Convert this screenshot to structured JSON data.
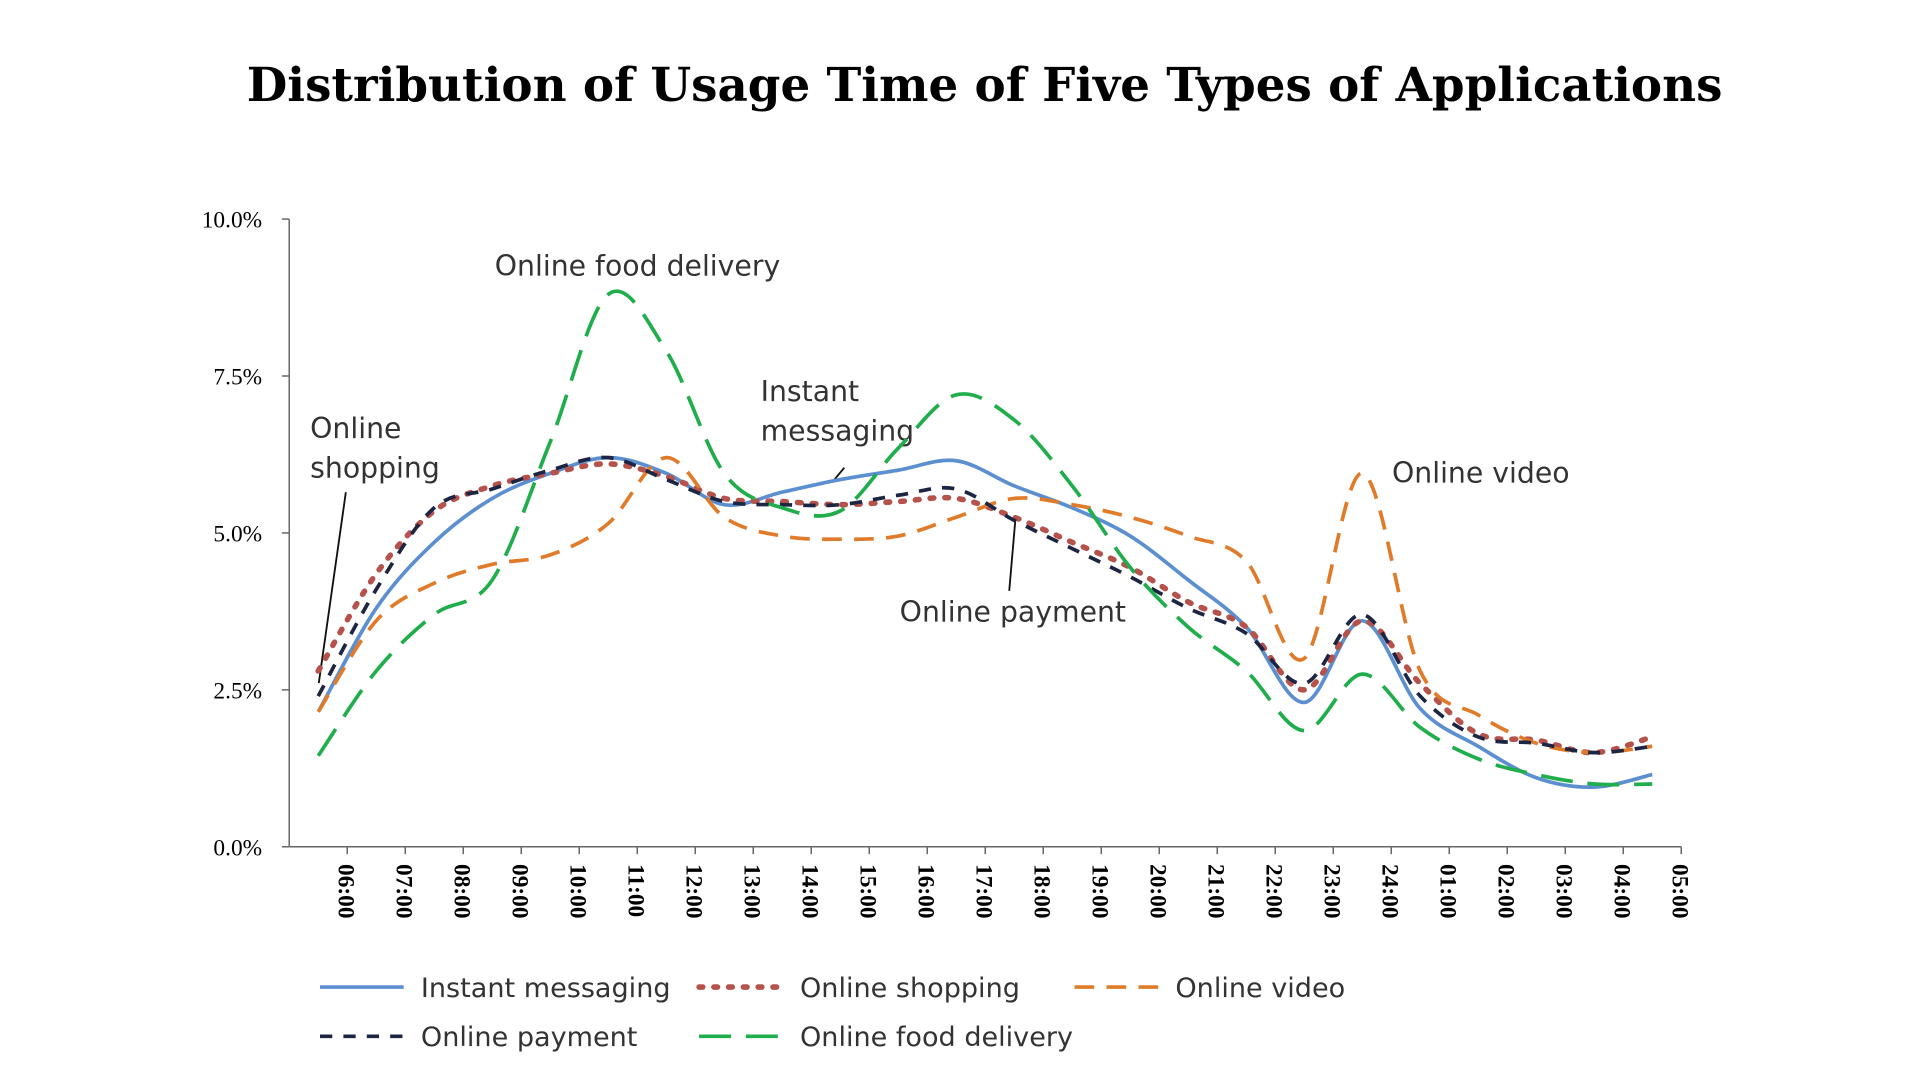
{
  "chart_data": {
    "type": "line",
    "title": "Distribution of Usage Time of Five Types of Applications",
    "categories": [
      "06:00",
      "07:00",
      "08:00",
      "09:00",
      "10:00",
      "11:00",
      "12:00",
      "13:00",
      "14:00",
      "15:00",
      "16:00",
      "17:00",
      "18:00",
      "19:00",
      "20:00",
      "21:00",
      "22:00",
      "23:00",
      "24:00",
      "01:00",
      "02:00",
      "03:00",
      "04:00",
      "05:00"
    ],
    "ylim": [
      0,
      10
    ],
    "yticks": [
      {
        "value": 0,
        "label": "0.0%"
      },
      {
        "value": 2.5,
        "label": "2.5%"
      },
      {
        "value": 5,
        "label": "5.0%"
      },
      {
        "value": 7.5,
        "label": "7.5%"
      },
      {
        "value": 10,
        "label": "10.0%"
      }
    ],
    "series": [
      {
        "name": "Instant messaging",
        "color": "#5b8fd0",
        "dash": "solid",
        "values": [
          2.15,
          3.8,
          4.85,
          5.55,
          5.95,
          6.2,
          5.95,
          5.45,
          5.65,
          5.85,
          6.0,
          6.15,
          5.75,
          5.4,
          4.95,
          4.25,
          3.5,
          2.3,
          3.6,
          2.2,
          1.6,
          1.1,
          0.95,
          1.15
        ]
      },
      {
        "name": "Online shopping",
        "color": "#b5524c",
        "dash": "dot",
        "values": [
          2.8,
          4.35,
          5.35,
          5.75,
          5.95,
          6.1,
          5.9,
          5.55,
          5.5,
          5.45,
          5.5,
          5.55,
          5.25,
          4.85,
          4.45,
          3.9,
          3.5,
          2.5,
          3.6,
          2.6,
          1.8,
          1.7,
          1.5,
          1.75
        ]
      },
      {
        "name": "Online video",
        "color": "#e07b2a",
        "dash": "dash",
        "values": [
          2.15,
          3.6,
          4.2,
          4.5,
          4.65,
          5.15,
          6.2,
          5.25,
          4.95,
          4.9,
          4.95,
          5.25,
          5.55,
          5.45,
          5.25,
          4.95,
          4.55,
          3.0,
          5.95,
          2.8,
          2.1,
          1.65,
          1.5,
          1.6
        ]
      },
      {
        "name": "Online payment",
        "color": "#1c2541",
        "dash": "shortdash",
        "values": [
          2.4,
          4.1,
          5.4,
          5.7,
          6.0,
          6.2,
          5.85,
          5.5,
          5.45,
          5.45,
          5.6,
          5.7,
          5.2,
          4.75,
          4.3,
          3.8,
          3.4,
          2.6,
          3.7,
          2.4,
          1.75,
          1.65,
          1.5,
          1.6
        ]
      },
      {
        "name": "Online food delivery",
        "color": "#1fae4b",
        "dash": "longdash",
        "values": [
          1.45,
          2.8,
          3.7,
          4.25,
          6.45,
          8.8,
          7.9,
          5.95,
          5.4,
          5.35,
          6.35,
          7.2,
          6.8,
          5.75,
          4.45,
          3.5,
          2.8,
          1.85,
          2.75,
          1.9,
          1.4,
          1.15,
          1.0,
          1.0
        ]
      }
    ],
    "annotations": [
      "Online food delivery",
      "Online shopping",
      "Instant messaging",
      "Online payment",
      "Online video"
    ]
  }
}
